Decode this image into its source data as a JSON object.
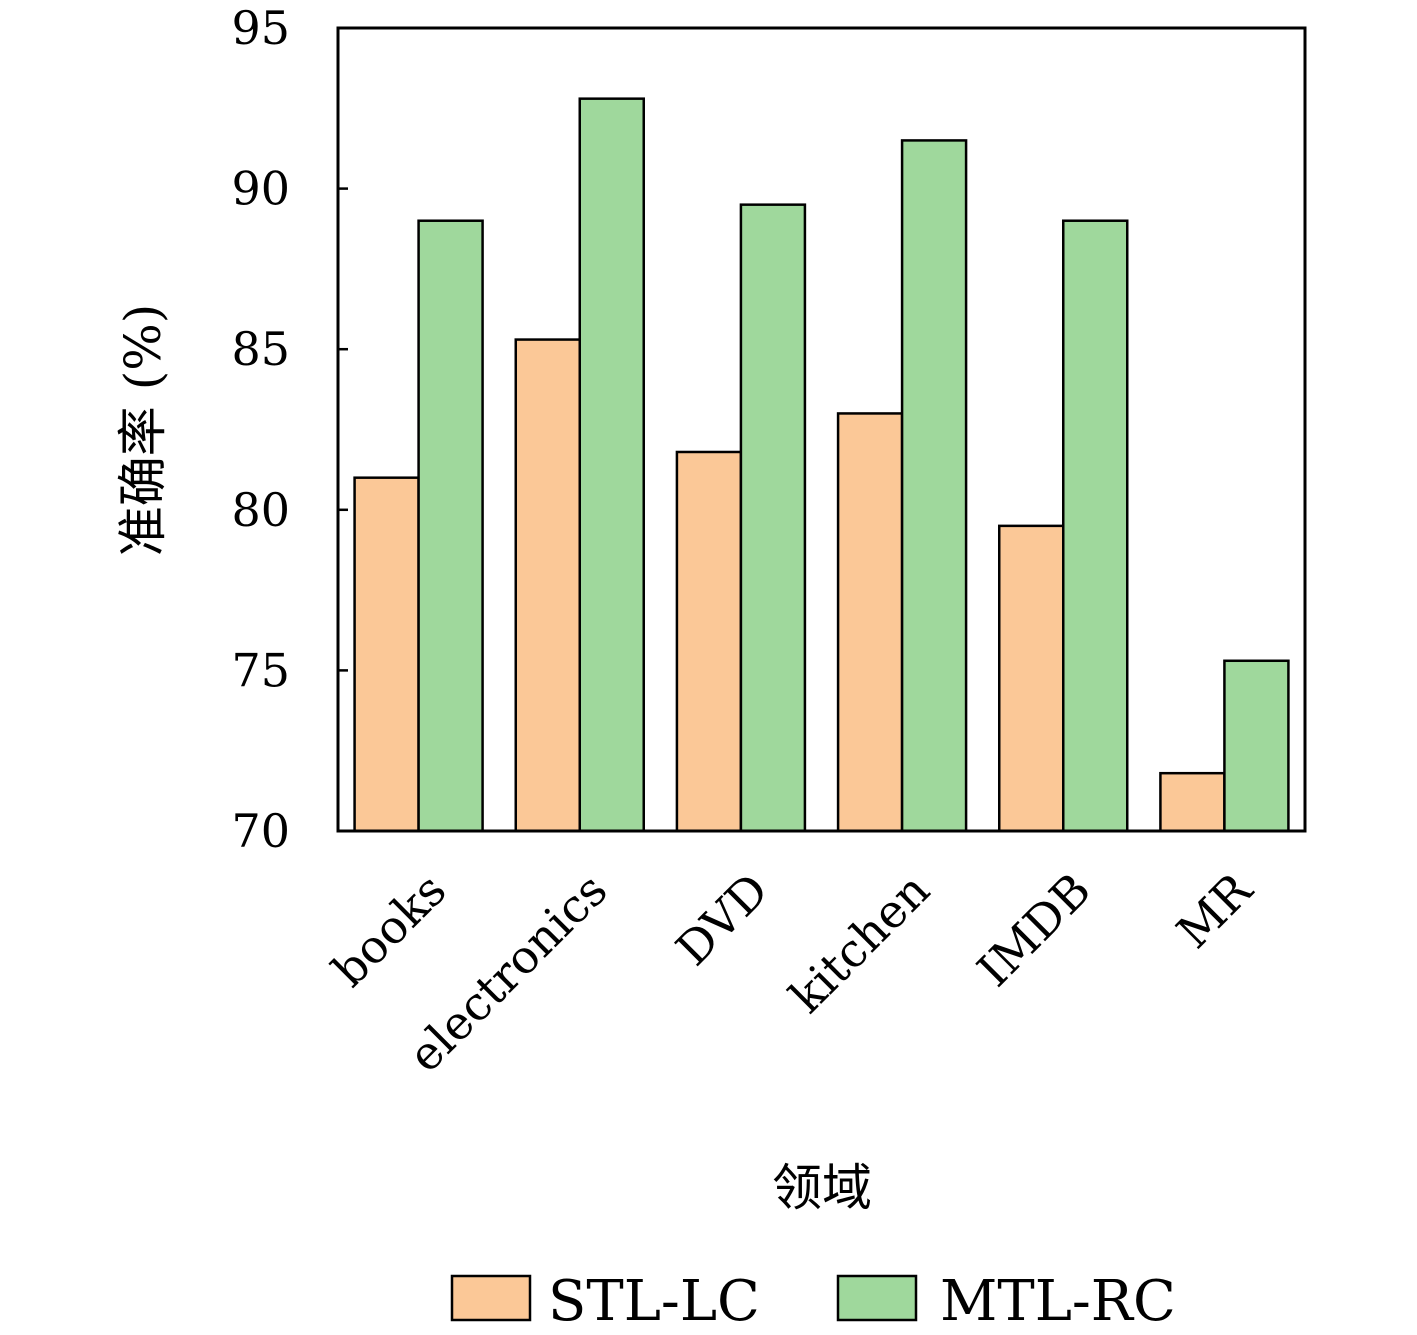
{
  "chart_data": {
    "type": "bar",
    "categories": [
      "books",
      "electronics",
      "DVD",
      "kitchen",
      "IMDB",
      "MR"
    ],
    "series": [
      {
        "name": "STL-LC",
        "color": "#fbc897",
        "values": [
          81.0,
          85.3,
          81.8,
          83.0,
          79.5,
          71.8
        ]
      },
      {
        "name": "MTL-RC",
        "color": "#9fd89c",
        "values": [
          89.0,
          92.8,
          89.5,
          91.5,
          89.0,
          75.3
        ]
      }
    ],
    "xlabel": "领域",
    "ylabel": "准确率 (%)",
    "ylim": [
      70,
      95
    ],
    "yticks": [
      70,
      75,
      80,
      85,
      90,
      95
    ],
    "grid": false,
    "legend_position": "bottom"
  }
}
